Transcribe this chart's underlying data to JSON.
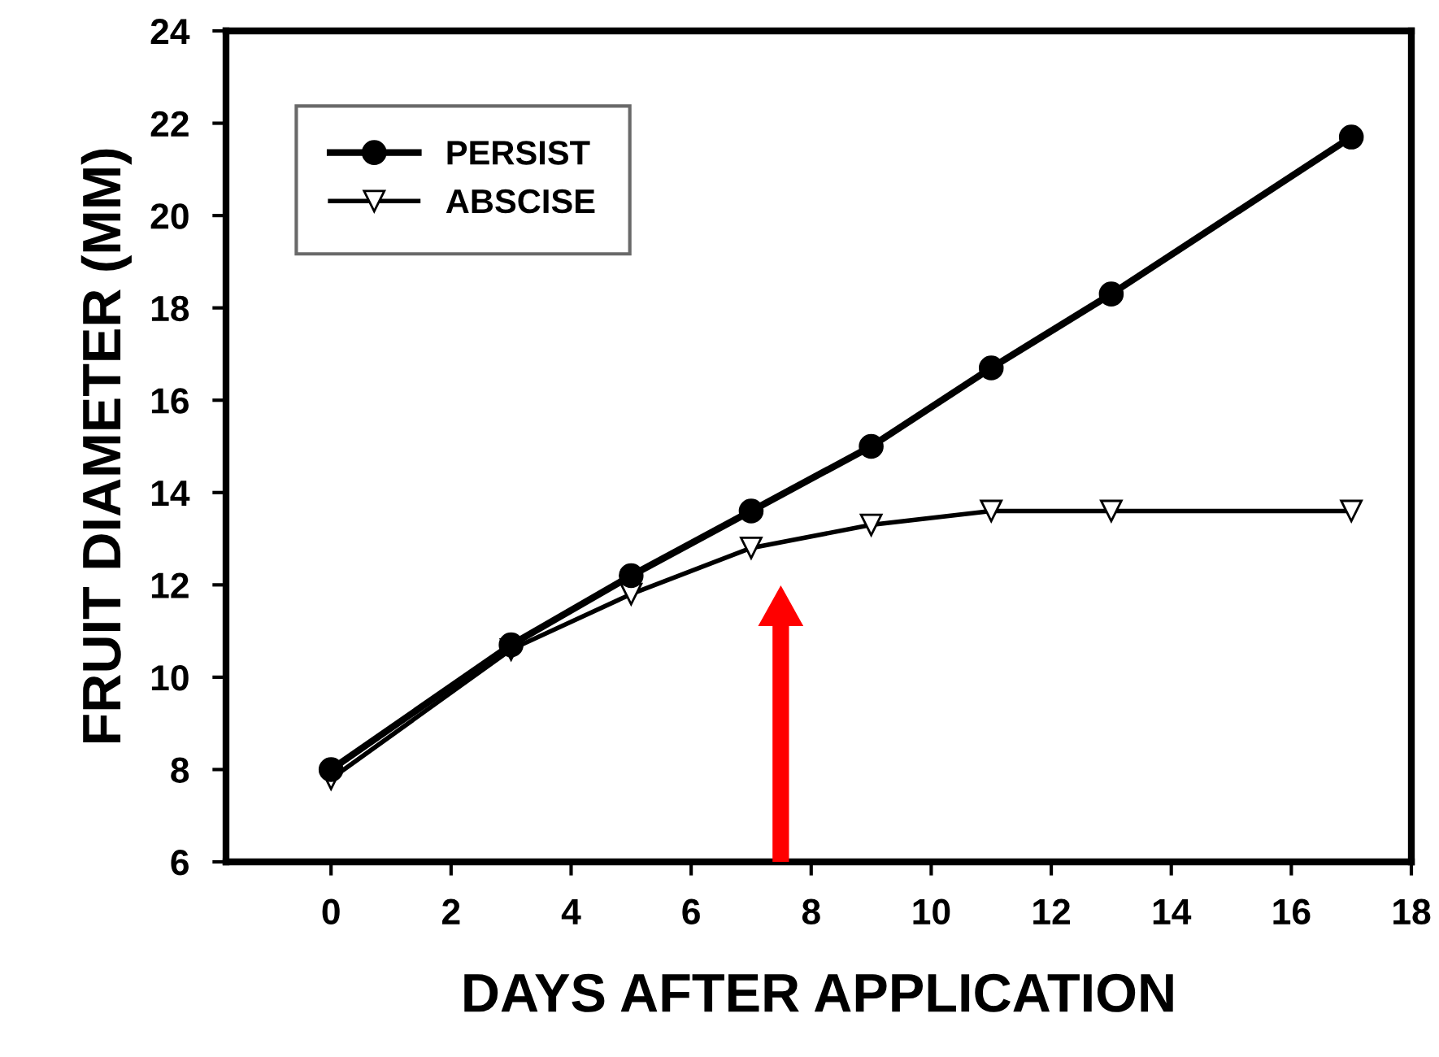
{
  "chart_data": {
    "type": "line",
    "xlabel": "DAYS AFTER APPLICATION",
    "ylabel": "FRUIT DIAMETER (MM)",
    "x": [
      0,
      3,
      5,
      7,
      9,
      11,
      13,
      17
    ],
    "series": [
      {
        "name": "PERSIST",
        "color": "#000000",
        "marker": "circle",
        "values": [
          8.0,
          10.7,
          12.2,
          13.6,
          15.0,
          16.7,
          18.3,
          21.7
        ]
      },
      {
        "name": "ABSCISE",
        "color": "#000000",
        "marker": "triangle",
        "values": [
          7.8,
          10.6,
          11.8,
          12.8,
          13.3,
          13.6,
          13.6,
          13.6
        ]
      }
    ],
    "xlim": [
      -1.75,
      18
    ],
    "xticks": [
      0,
      2,
      4,
      6,
      8,
      10,
      12,
      14,
      16,
      18
    ],
    "ylim": [
      6,
      24
    ],
    "yticks": [
      6,
      8,
      10,
      12,
      14,
      16,
      18,
      20,
      22,
      24
    ],
    "grid": false,
    "legend": "top left",
    "line_style": "solid"
  }
}
